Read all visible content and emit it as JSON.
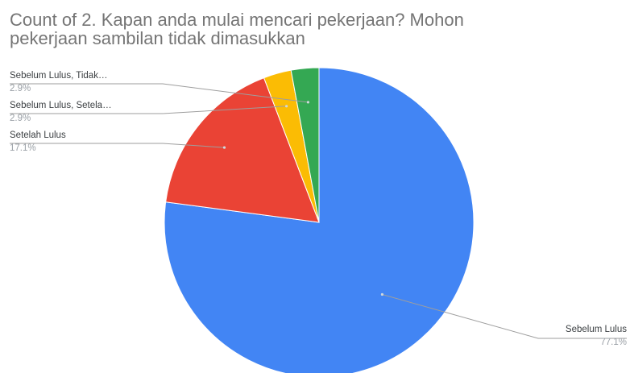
{
  "chart_data": {
    "type": "pie",
    "title_lines": [
      "Count of 2. Kapan anda mulai mencari pekerjaan? Mohon",
      "pekerjaan sambilan tidak dimasukkan"
    ],
    "slices": [
      {
        "label": "Sebelum Lulus",
        "percent_label": "77.1%",
        "value": 77.1,
        "color": "#4285f4"
      },
      {
        "label": "Setelah Lulus",
        "percent_label": "17.1%",
        "value": 17.1,
        "color": "#ea4335"
      },
      {
        "label": "Sebelum Lulus, Setela…",
        "percent_label": "2.9%",
        "value": 2.9,
        "color": "#fbbc04"
      },
      {
        "label": "Sebelum Lulus, Tidak…",
        "percent_label": "2.9%",
        "value": 2.9,
        "color": "#34a853"
      }
    ],
    "legend": "none"
  }
}
